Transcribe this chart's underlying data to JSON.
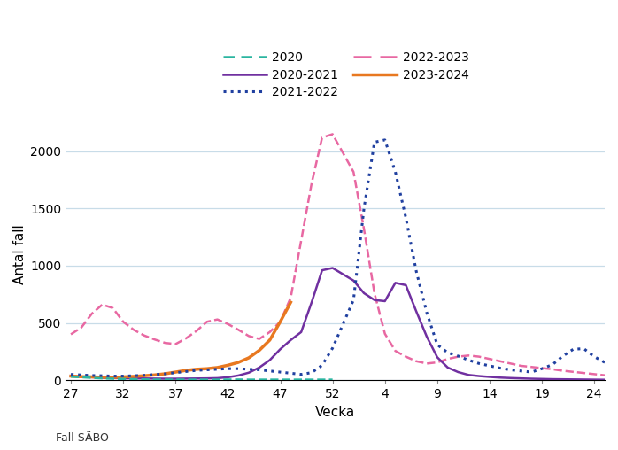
{
  "ylabel": "Antal fall",
  "xlabel": "Vecka",
  "footnote": "Fall SÄBO",
  "background_color": "#ffffff",
  "grid_color": "#c8dce8",
  "ylim": [
    0,
    2200
  ],
  "yticks": [
    0,
    500,
    1000,
    1500,
    2000
  ],
  "xtick_weeks": [
    27,
    32,
    37,
    42,
    47,
    52,
    4,
    9,
    14,
    19,
    24
  ],
  "xtick_labels": [
    "27",
    "32",
    "37",
    "42",
    "47",
    "52",
    "4",
    "9",
    "14",
    "19",
    "24"
  ],
  "series": {
    "2020": {
      "color": "#2ab5a0",
      "linestyle": "dashed",
      "linewidth": 1.8,
      "weeks": [
        27,
        28,
        29,
        30,
        31,
        32,
        33,
        34,
        35,
        36,
        37,
        38,
        39,
        40,
        41,
        42,
        43,
        44,
        45,
        46,
        47,
        48,
        49,
        50,
        51,
        52,
        1,
        2,
        3,
        4,
        5,
        6,
        7,
        8,
        9,
        10,
        11,
        12,
        13,
        14,
        15,
        16,
        17,
        18,
        19,
        20,
        21,
        22,
        23,
        24,
        25,
        26
      ],
      "y": [
        30,
        25,
        20,
        15,
        12,
        10,
        8,
        6,
        5,
        4,
        5,
        4,
        4,
        4,
        4,
        5,
        5,
        4,
        4,
        4,
        4,
        4,
        4,
        4,
        4,
        4,
        null,
        null,
        null,
        null,
        null,
        null,
        null,
        null,
        null,
        null,
        null,
        null,
        null,
        null,
        null,
        null,
        null,
        null,
        null,
        null,
        null,
        null,
        null,
        null,
        null,
        null
      ]
    },
    "2020-2021": {
      "color": "#7030a0",
      "linestyle": "solid",
      "linewidth": 1.8,
      "weeks": [
        27,
        28,
        29,
        30,
        31,
        32,
        33,
        34,
        35,
        36,
        37,
        38,
        39,
        40,
        41,
        42,
        43,
        44,
        45,
        46,
        47,
        48,
        49,
        50,
        51,
        52,
        1,
        2,
        3,
        4,
        5,
        6,
        7,
        8,
        9,
        10,
        11,
        12,
        13,
        14,
        15,
        16,
        17,
        18,
        19,
        20,
        21,
        22,
        23,
        24,
        25,
        26
      ],
      "y": [
        35,
        30,
        25,
        20,
        18,
        16,
        15,
        14,
        13,
        12,
        12,
        13,
        14,
        15,
        17,
        25,
        40,
        65,
        110,
        175,
        270,
        350,
        420,
        680,
        960,
        980,
        870,
        760,
        700,
        690,
        850,
        830,
        600,
        380,
        200,
        110,
        70,
        45,
        35,
        28,
        22,
        18,
        15,
        12,
        10,
        8,
        7,
        6,
        5,
        4,
        3,
        3
      ]
    },
    "2021-2022": {
      "color": "#2040a0",
      "linestyle": "dotted",
      "linewidth": 2.2,
      "weeks": [
        27,
        28,
        29,
        30,
        31,
        32,
        33,
        34,
        35,
        36,
        37,
        38,
        39,
        40,
        41,
        42,
        43,
        44,
        45,
        46,
        47,
        48,
        49,
        50,
        51,
        52,
        1,
        2,
        3,
        4,
        5,
        6,
        7,
        8,
        9,
        10,
        11,
        12,
        13,
        14,
        15,
        16,
        17,
        18,
        19,
        20,
        21,
        22,
        23,
        24,
        25,
        26
      ],
      "y": [
        50,
        45,
        40,
        38,
        35,
        35,
        38,
        42,
        48,
        55,
        65,
        75,
        85,
        90,
        95,
        100,
        100,
        95,
        90,
        80,
        70,
        60,
        50,
        65,
        130,
        280,
        700,
        1500,
        2080,
        2100,
        1820,
        1420,
        950,
        590,
        310,
        240,
        210,
        175,
        145,
        125,
        105,
        90,
        80,
        70,
        100,
        135,
        210,
        270,
        275,
        205,
        155,
        105
      ]
    },
    "2022-2023": {
      "color": "#e868a2",
      "linestyle": "dashed",
      "linewidth": 1.8,
      "weeks": [
        27,
        28,
        29,
        30,
        31,
        32,
        33,
        34,
        35,
        36,
        37,
        38,
        39,
        40,
        41,
        42,
        43,
        44,
        45,
        46,
        47,
        48,
        49,
        50,
        51,
        52,
        1,
        2,
        3,
        4,
        5,
        6,
        7,
        8,
        9,
        10,
        11,
        12,
        13,
        14,
        15,
        16,
        17,
        18,
        19,
        20,
        21,
        22,
        23,
        24,
        25,
        26
      ],
      "y": [
        400,
        460,
        580,
        660,
        630,
        510,
        440,
        390,
        355,
        325,
        315,
        365,
        430,
        510,
        530,
        490,
        440,
        385,
        360,
        420,
        510,
        720,
        1220,
        1720,
        2120,
        2150,
        1820,
        1320,
        760,
        405,
        255,
        205,
        165,
        145,
        155,
        185,
        205,
        215,
        205,
        185,
        165,
        145,
        125,
        115,
        105,
        95,
        82,
        72,
        62,
        52,
        42,
        32
      ]
    },
    "2023-2024": {
      "color": "#e87820",
      "linestyle": "solid",
      "linewidth": 2.5,
      "weeks": [
        27,
        28,
        29,
        30,
        31,
        32,
        33,
        34,
        35,
        36,
        37,
        38,
        39,
        40,
        41,
        42,
        43,
        44,
        45,
        46,
        47,
        48
      ],
      "y": [
        35,
        30,
        28,
        25,
        22,
        28,
        32,
        38,
        45,
        55,
        70,
        85,
        95,
        100,
        110,
        130,
        155,
        195,
        260,
        350,
        510,
        680
      ]
    }
  }
}
